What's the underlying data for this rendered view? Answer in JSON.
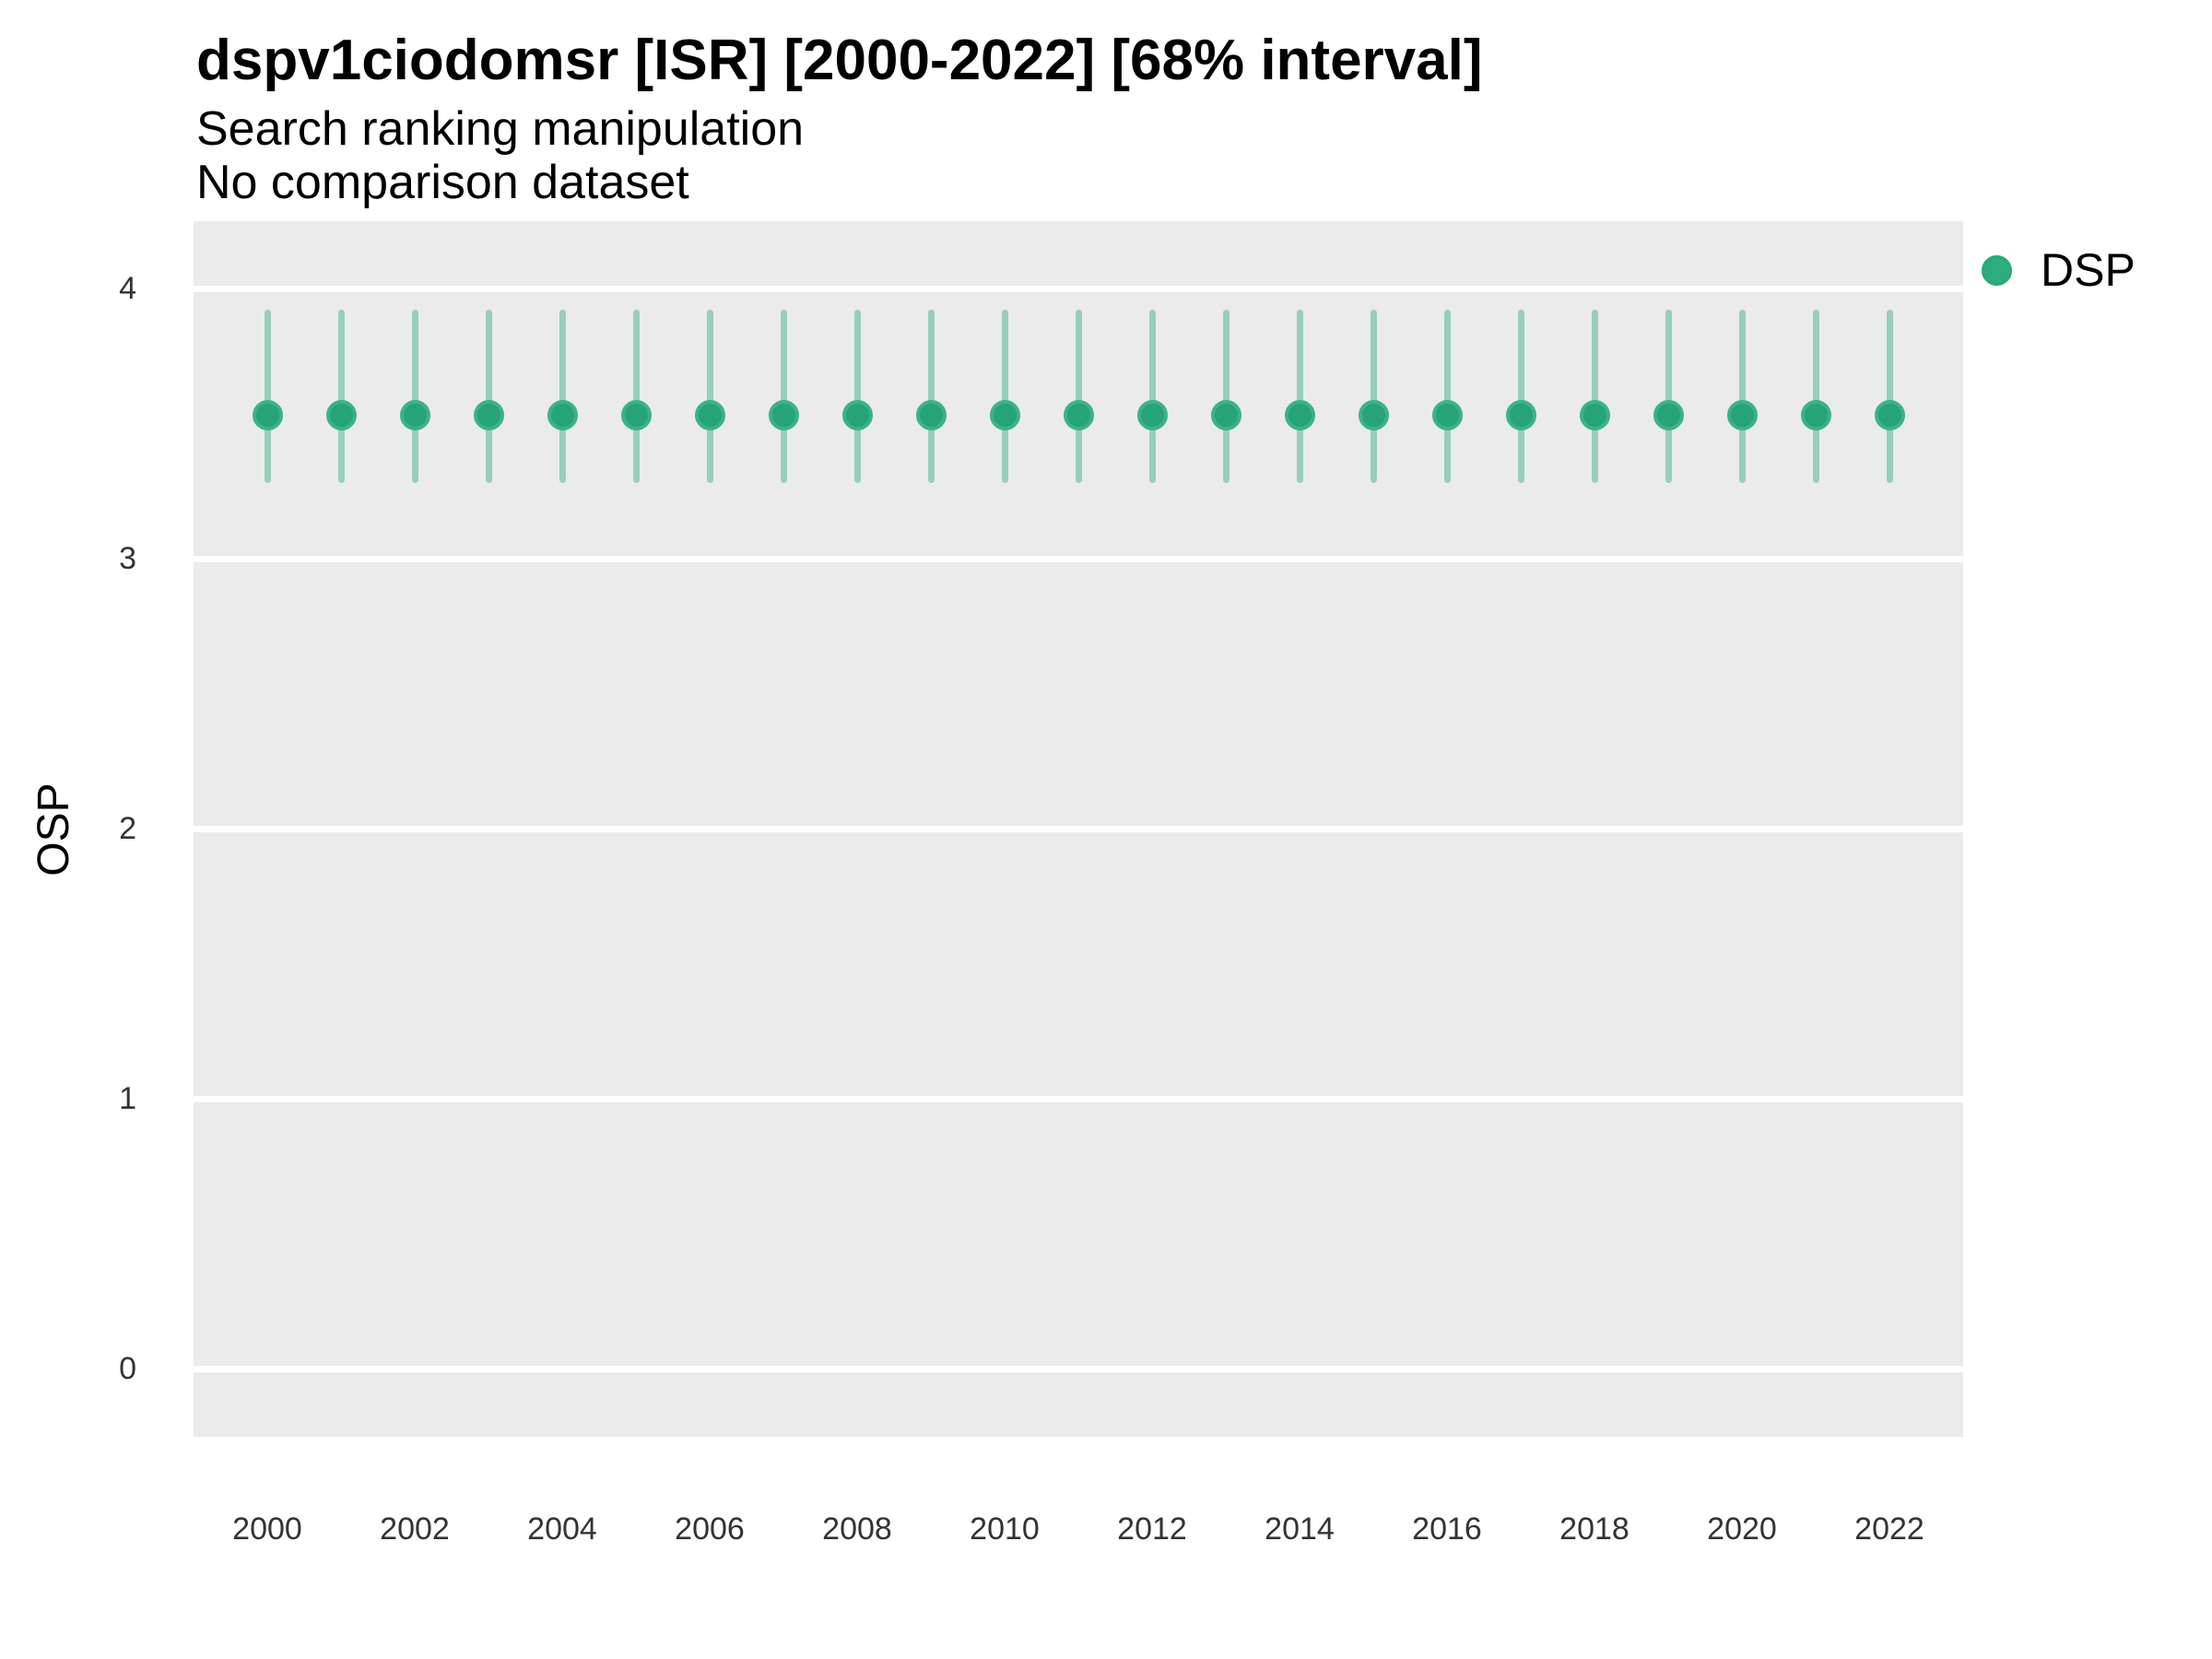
{
  "header": {
    "title": "dspv1ciodomsr [ISR] [2000-2022] [68% interval]",
    "subtitle": "Search ranking manipulation",
    "note": "No comparison dataset"
  },
  "legend": {
    "items": [
      {
        "label": "DSP",
        "color": "#2dac7e"
      }
    ]
  },
  "colors": {
    "panel_background": "#ebebeb",
    "gridline": "#ffffff",
    "interval_line": "#97cfb9",
    "point_fill": "#26a377",
    "point_ring": "#3cb288",
    "text": "#000000",
    "tick_text": "#333333"
  },
  "chart_data": {
    "type": "pointrange",
    "title": "dspv1ciodomsr [ISR] [2000-2022] [68% interval]",
    "subtitle": "Search ranking manipulation",
    "annotation": "No comparison dataset",
    "interval": "68%",
    "xlabel": "",
    "ylabel": "OSP",
    "x_ticks": [
      2000,
      2002,
      2004,
      2006,
      2008,
      2010,
      2012,
      2014,
      2016,
      2018,
      2020,
      2022
    ],
    "y_ticks": [
      0,
      1,
      2,
      3,
      4
    ],
    "ylim": [
      -0.25,
      4.25
    ],
    "grid": "major-horizontal-only",
    "legend_position": "right-top",
    "series": [
      {
        "name": "DSP",
        "years": [
          2000,
          2001,
          2002,
          2003,
          2004,
          2005,
          2006,
          2007,
          2008,
          2009,
          2010,
          2011,
          2012,
          2013,
          2014,
          2015,
          2016,
          2017,
          2018,
          2019,
          2020,
          2021,
          2022
        ],
        "mid": [
          3.53,
          3.53,
          3.53,
          3.53,
          3.53,
          3.53,
          3.53,
          3.53,
          3.53,
          3.53,
          3.53,
          3.53,
          3.53,
          3.53,
          3.53,
          3.53,
          3.53,
          3.53,
          3.53,
          3.53,
          3.53,
          3.53,
          3.53
        ],
        "lo": [
          3.28,
          3.28,
          3.28,
          3.28,
          3.28,
          3.28,
          3.28,
          3.28,
          3.28,
          3.28,
          3.28,
          3.28,
          3.28,
          3.28,
          3.28,
          3.28,
          3.28,
          3.28,
          3.28,
          3.28,
          3.28,
          3.28,
          3.28
        ],
        "hi": [
          3.92,
          3.92,
          3.92,
          3.92,
          3.92,
          3.92,
          3.92,
          3.92,
          3.92,
          3.92,
          3.92,
          3.92,
          3.92,
          3.92,
          3.92,
          3.92,
          3.92,
          3.92,
          3.92,
          3.92,
          3.92,
          3.92,
          3.92
        ]
      }
    ]
  }
}
